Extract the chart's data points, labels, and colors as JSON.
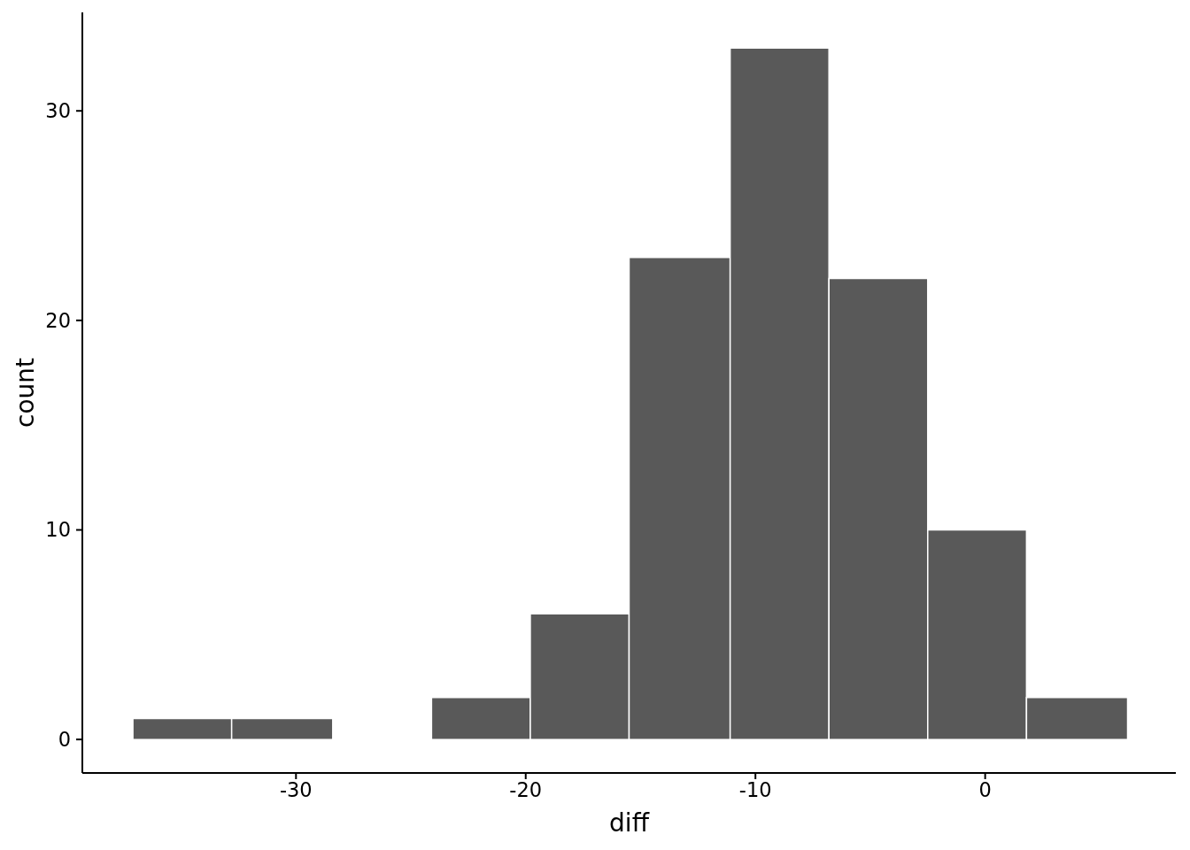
{
  "chart_data": {
    "type": "histogram",
    "xlabel": "diff",
    "ylabel": "count",
    "bins": [
      -37.1,
      -32.8,
      -28.4,
      -24.1,
      -19.8,
      -15.5,
      -11.1,
      -6.8,
      -2.5,
      1.8,
      6.2
    ],
    "values": [
      1,
      1,
      0,
      2,
      6,
      23,
      33,
      22,
      10,
      2
    ],
    "color": "#595959",
    "xlim": [
      -39.3,
      8.3
    ],
    "xticks": [
      -30,
      -20,
      -10,
      0
    ],
    "ylim": [
      -1.6,
      34.7
    ],
    "yticks": [
      0,
      10,
      20,
      30
    ]
  }
}
